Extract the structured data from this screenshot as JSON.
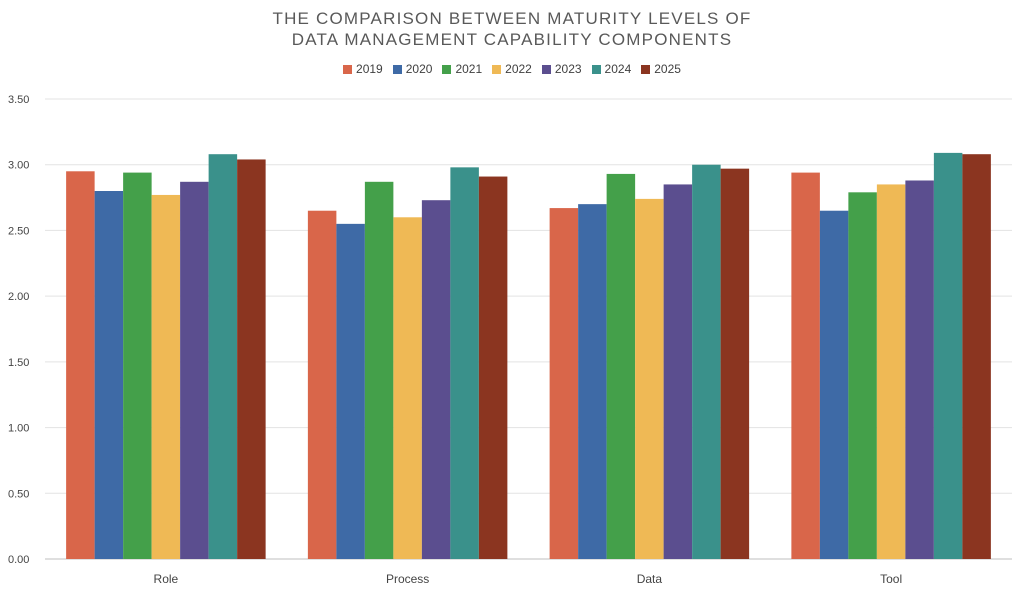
{
  "chart_data": {
    "type": "bar",
    "title_lines": [
      "THE COMPARISON BETWEEN MATURITY LEVELS OF",
      "DATA MANAGEMENT CAPABILITY COMPONENTS"
    ],
    "categories": [
      "Role",
      "Process",
      "Data",
      "Tool"
    ],
    "series": [
      {
        "name": "2019",
        "color": "#D9664A",
        "values": [
          2.95,
          2.65,
          2.67,
          2.94
        ]
      },
      {
        "name": "2020",
        "color": "#3E6AA6",
        "values": [
          2.8,
          2.55,
          2.7,
          2.65
        ]
      },
      {
        "name": "2021",
        "color": "#44A04A",
        "values": [
          2.94,
          2.87,
          2.93,
          2.79
        ]
      },
      {
        "name": "2022",
        "color": "#EFB955",
        "values": [
          2.77,
          2.6,
          2.74,
          2.85
        ]
      },
      {
        "name": "2023",
        "color": "#5B4E8F",
        "values": [
          2.87,
          2.73,
          2.85,
          2.88
        ]
      },
      {
        "name": "2024",
        "color": "#3A918B",
        "values": [
          3.08,
          2.98,
          3.0,
          3.09
        ]
      },
      {
        "name": "2025",
        "color": "#8B3520",
        "values": [
          3.04,
          2.91,
          2.97,
          3.08
        ]
      }
    ],
    "yticks": [
      "0.00",
      "0.50",
      "1.00",
      "1.50",
      "2.00",
      "2.50",
      "3.00",
      "3.50"
    ],
    "ylim": [
      0,
      3.5
    ],
    "grid": true,
    "legend_position": "top"
  }
}
